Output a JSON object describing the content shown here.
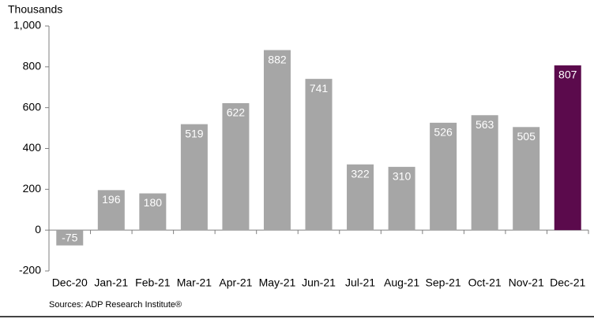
{
  "chart_data": {
    "type": "bar",
    "y_label": "Thousands",
    "source": "Sources: ADP Research Institute®",
    "categories": [
      "Dec-20",
      "Jan-21",
      "Feb-21",
      "Mar-21",
      "Apr-21",
      "May-21",
      "Jun-21",
      "Jul-21",
      "Aug-21",
      "Sep-21",
      "Oct-21",
      "Nov-21",
      "Dec-21"
    ],
    "values": [
      -75,
      196,
      180,
      519,
      622,
      882,
      741,
      322,
      310,
      526,
      563,
      505,
      807
    ],
    "colors": [
      "#a6a6a6",
      "#a6a6a6",
      "#a6a6a6",
      "#a6a6a6",
      "#a6a6a6",
      "#a6a6a6",
      "#a6a6a6",
      "#a6a6a6",
      "#a6a6a6",
      "#a6a6a6",
      "#a6a6a6",
      "#a6a6a6",
      "#5b0a4c"
    ],
    "ylim": [
      -200,
      1000
    ],
    "yticks": [
      -200,
      0,
      200,
      400,
      600,
      800,
      {
        "value": 1000,
        "label": "1,000"
      }
    ],
    "grid": false
  }
}
